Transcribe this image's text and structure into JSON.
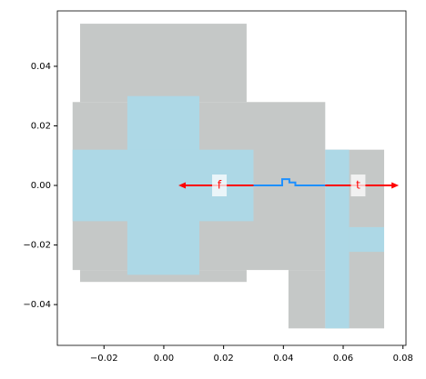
{
  "chart_data": {
    "type": "shapes",
    "xlim": [
      -0.0356,
      0.081
    ],
    "ylim": [
      -0.0537,
      0.0586
    ],
    "xticks": [
      {
        "value": -0.02,
        "label": "−0.02"
      },
      {
        "value": 0,
        "label": "0.00"
      },
      0.02,
      0.04,
      0.06,
      0.08
    ],
    "yticks": [
      {
        "value": -0.04,
        "label": "−0.04"
      },
      {
        "value": -0.02,
        "label": "−0.02"
      },
      {
        "value": 0,
        "label": "0.00"
      },
      0.02,
      0.04
    ],
    "regions": [
      {
        "color": "#c5c8c7",
        "x": [
          -0.028,
          0.0277
        ],
        "y": [
          0.028,
          0.0543
        ]
      },
      {
        "color": "#c5c8c7",
        "x": [
          -0.0305,
          0.054
        ],
        "y": [
          -0.0284,
          0.028
        ]
      },
      {
        "color": "#c5c8c7",
        "x": [
          -0.028,
          0.0277
        ],
        "y": [
          -0.0324,
          -0.0284
        ]
      },
      {
        "color": "#c5c8c7",
        "x": [
          0.0417,
          0.054
        ],
        "y": [
          -0.048,
          -0.0284
        ]
      },
      {
        "color": "#c5c8c7",
        "x": [
          0.054,
          0.0737
        ],
        "y": [
          -0.048,
          0.012
        ]
      },
      {
        "color": "#add8e6",
        "x": [
          -0.0122,
          0.0119
        ],
        "y": [
          -0.03,
          0.03
        ]
      },
      {
        "color": "#add8e6",
        "x": [
          -0.0305,
          0.03
        ],
        "y": [
          -0.012,
          0.012
        ]
      },
      {
        "color": "#add8e6",
        "x": [
          0.054,
          0.062
        ],
        "y": [
          -0.048,
          0.012
        ]
      },
      {
        "color": "#add8e6",
        "x": [
          0.062,
          0.0737
        ],
        "y": [
          -0.0223,
          -0.014
        ]
      }
    ],
    "path": {
      "color": "#1e90ff",
      "x": [
        0.03,
        0.0396,
        0.0396,
        0.042,
        0.042,
        0.044,
        0.044,
        0.054
      ],
      "y": [
        0,
        0,
        0.0021,
        0.0021,
        0.001,
        0.001,
        0,
        0
      ]
    },
    "arrows": [
      {
        "color": "#ff0000",
        "x": [
          0.03,
          0.0049
        ],
        "y": [
          0,
          0
        ]
      },
      {
        "color": "#ff0000",
        "x": [
          0.054,
          0.0786
        ],
        "y": [
          0,
          0
        ]
      }
    ],
    "labels": [
      {
        "text": "f",
        "x": 0.0186,
        "y": 0
      },
      {
        "text": "t",
        "x": 0.065,
        "y": 0
      }
    ]
  }
}
